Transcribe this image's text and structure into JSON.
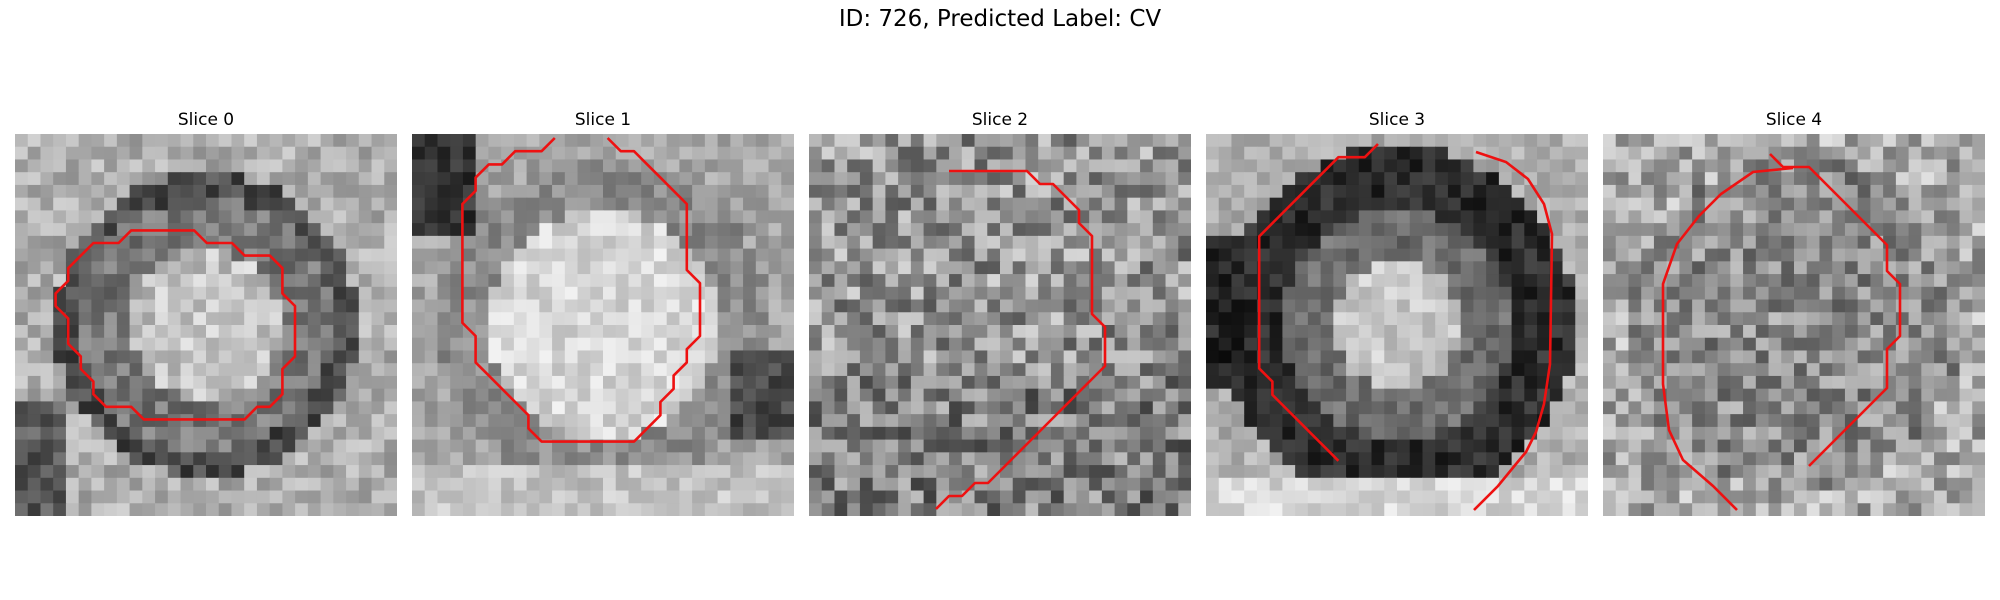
{
  "figure": {
    "title": "ID: 726, Predicted Label: CV",
    "contour_color": "#ee1111",
    "colormap": "grayscale"
  },
  "slices": [
    {
      "title": "Slice 0",
      "pattern": "ring-bright-center"
    },
    {
      "title": "Slice 1",
      "pattern": "bright-blob-dark-corners"
    },
    {
      "title": "Slice 2",
      "pattern": "noisy-textured"
    },
    {
      "title": "Slice 3",
      "pattern": "dark-ring-bright-center"
    },
    {
      "title": "Slice 4",
      "pattern": "noisy-mid-gray"
    }
  ]
}
